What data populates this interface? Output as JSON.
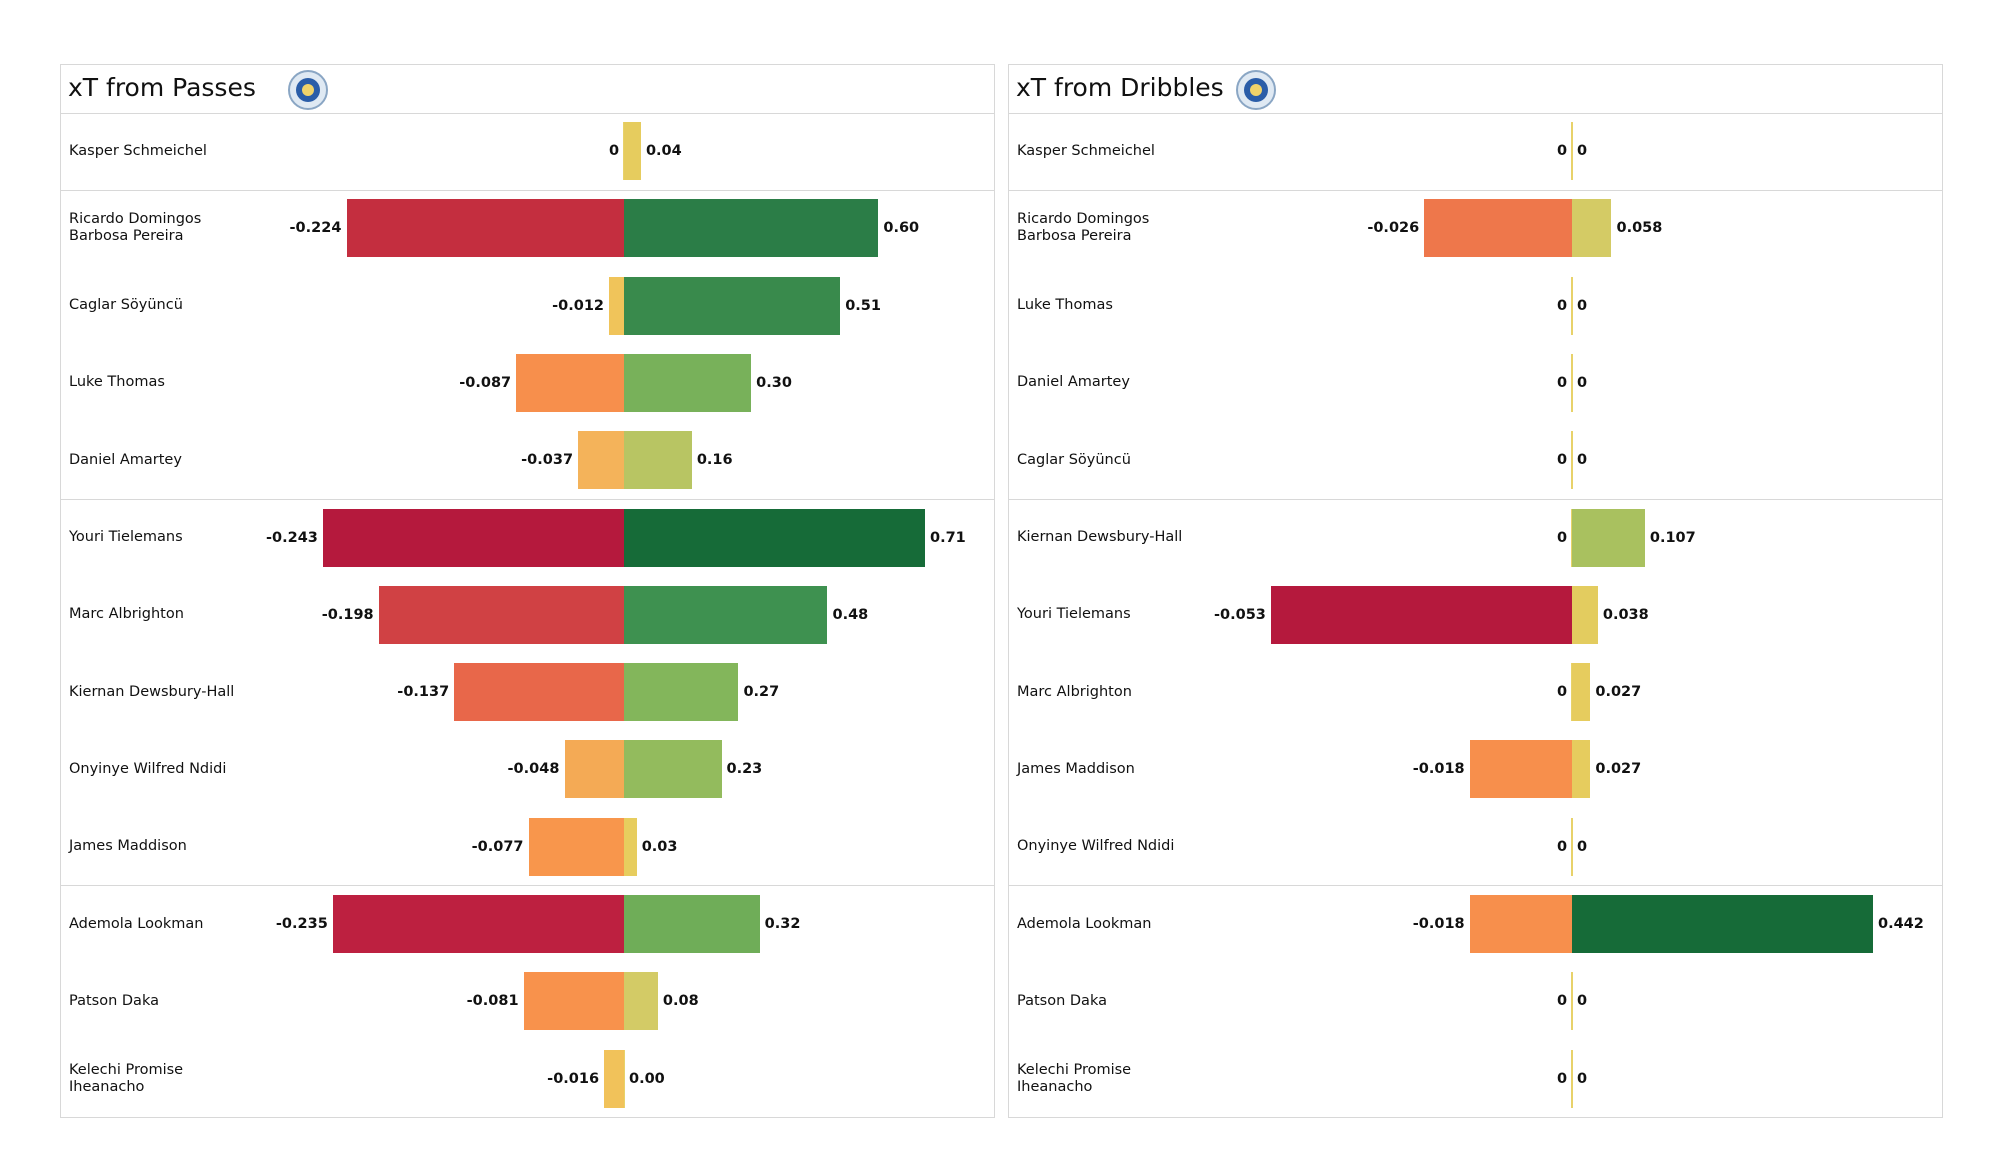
{
  "chart_data": [
    {
      "type": "diverging-bar",
      "title": "xT from Passes",
      "categories": [
        "Kasper Schmeichel",
        "Ricardo Domingos Barbosa Pereira",
        "Caglar Söyüncü",
        "Luke Thomas",
        "Daniel Amartey",
        "Youri Tielemans",
        "Marc Albrighton",
        "Kiernan Dewsbury-Hall",
        "Onyinye Wilfred Ndidi",
        "James Maddison",
        "Ademola Lookman",
        "Patson Daka",
        "Kelechi Promise Iheanacho"
      ],
      "series": [
        {
          "values": [
            0,
            -0.224,
            -0.012,
            -0.087,
            -0.037,
            -0.243,
            -0.198,
            -0.137,
            -0.048,
            -0.077,
            -0.235,
            -0.081,
            -0.016
          ],
          "colors": [
            "#e8c95a",
            "#c42e3f",
            "#f0c45a",
            "#f78f4c",
            "#f4b35a",
            "#b5193d",
            "#d04144",
            "#e8674a",
            "#f4aa55",
            "#f8964c",
            "#bd2040",
            "#f8924c",
            "#f1c25a"
          ]
        },
        {
          "values": [
            0.04,
            0.6,
            0.51,
            0.3,
            0.16,
            0.71,
            0.48,
            0.27,
            0.23,
            0.03,
            0.32,
            0.08,
            0
          ],
          "value_labels": [
            "0.04",
            "0.60",
            "0.51",
            "0.30",
            "0.16",
            "0.71",
            "0.48",
            "0.27",
            "0.23",
            "0.03",
            "0.32",
            "0.08",
            "0.00"
          ],
          "colors": [
            "#e6cc5e",
            "#2b7d47",
            "#398a4c",
            "#78b15a",
            "#b8c563",
            "#166b38",
            "#3e9150",
            "#83b65b",
            "#93bb5d",
            "#e7cd5e",
            "#6fad58",
            "#d3cb66",
            "#e8c95a"
          ]
        }
      ]
    },
    {
      "type": "diverging-bar",
      "title": "xT from Dribbles",
      "categories": [
        "Kasper Schmeichel",
        "Ricardo Domingos Barbosa Pereira",
        "Luke Thomas",
        "Daniel Amartey",
        "Caglar Söyüncü",
        "Kiernan Dewsbury-Hall",
        "Youri Tielemans",
        "Marc Albrighton",
        "James Maddison",
        "Onyinye Wilfred Ndidi",
        "Ademola Lookman",
        "Patson Daka",
        "Kelechi Promise Iheanacho"
      ],
      "series": [
        {
          "values": [
            0,
            -0.026,
            0,
            0,
            0,
            0,
            -0.053,
            0,
            -0.018,
            0,
            -0.018,
            0,
            0
          ],
          "colors": [
            "#e8c95a",
            "#ee774b",
            "#e8c95a",
            "#e8c95a",
            "#e8c95a",
            "#e8c95a",
            "#b5193d",
            "#e8c95a",
            "#f78f4c",
            "#e8c95a",
            "#f78f4c",
            "#e8c95a",
            "#e8c95a"
          ]
        },
        {
          "values": [
            0,
            0.058,
            0,
            0,
            0,
            0.107,
            0.038,
            0.027,
            0.027,
            0,
            0.442,
            0,
            0
          ],
          "colors": [
            "#e8c95a",
            "#d4cb65",
            "#e8c95a",
            "#e8c95a",
            "#e8c95a",
            "#a9c15f",
            "#e3cc5f",
            "#e6cc5e",
            "#e6cc5e",
            "#e8c95a",
            "#166b38",
            "#e8c95a",
            "#e8c95a"
          ]
        }
      ]
    }
  ]
}
